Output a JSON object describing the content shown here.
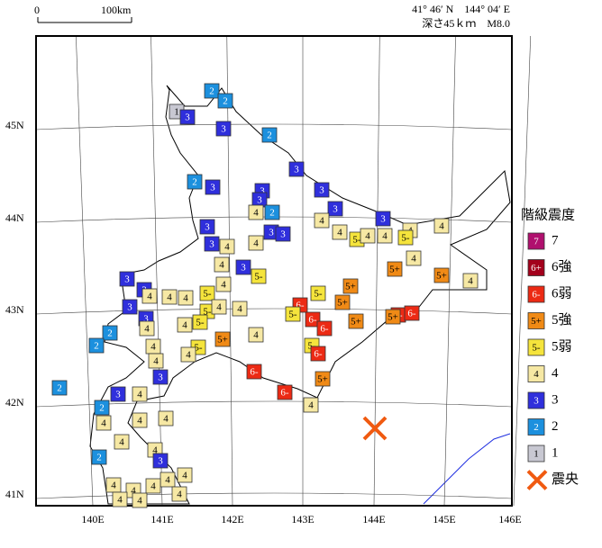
{
  "header": {
    "scale_start": "0",
    "scale_end": "100km",
    "location": "41° 46′ N　144° 04′ E",
    "depth_magnitude": "深さ45ｋｍ　M8.0"
  },
  "axes": {
    "longitudes": [
      "140E",
      "141E",
      "142E",
      "143E",
      "144E",
      "145E",
      "146E"
    ],
    "latitudes": [
      "45N",
      "44N",
      "43N",
      "42N",
      "41N"
    ]
  },
  "legend": {
    "title": "階級震度",
    "items": [
      {
        "symbol": "7",
        "label": "7",
        "color": "#b0106e"
      },
      {
        "symbol": "6+",
        "label": "6強",
        "color": "#a3001c"
      },
      {
        "symbol": "6-",
        "label": "6弱",
        "color": "#ec2a14"
      },
      {
        "symbol": "5+",
        "label": "5強",
        "color": "#f08a16"
      },
      {
        "symbol": "5-",
        "label": "5弱",
        "color": "#f5e43c"
      },
      {
        "symbol": "4",
        "label": "4",
        "color": "#f6e8a4"
      },
      {
        "symbol": "3",
        "label": "3",
        "color": "#2f2fdc"
      },
      {
        "symbol": "2",
        "label": "2",
        "color": "#1c90de"
      },
      {
        "symbol": "1",
        "label": "1",
        "color": "#c8c8d2"
      }
    ],
    "epicenter_label": "震央"
  },
  "stations": [
    "2",
    "2",
    "1",
    "3",
    "3",
    "2",
    "3",
    "2",
    "3",
    "3",
    "3",
    "3",
    "3",
    "4",
    "2",
    "3",
    "4",
    "3",
    "4",
    "4",
    "4",
    "4",
    "5-",
    "4",
    "5-",
    "3",
    "3",
    "4",
    "3",
    "4",
    "4",
    "3",
    "4",
    "5-",
    "4",
    "5+",
    "5+",
    "4",
    "3",
    "3",
    "4",
    "4",
    "4",
    "5-",
    "5-",
    "4",
    "4",
    "3",
    "2",
    "2",
    "3",
    "4",
    "4",
    "5-",
    "5+",
    "5-",
    "4",
    "4",
    "4",
    "4",
    "3",
    "6-",
    "5-",
    "5+",
    "5+",
    "5-",
    "6-",
    "6-",
    "5+",
    "5-",
    "6-",
    "5+",
    "6-",
    "6-",
    "4",
    "6-",
    "6-",
    "5+",
    "2",
    "3",
    "4",
    "2",
    "4",
    "4",
    "4",
    "4",
    "2",
    "4",
    "3",
    "4",
    "4",
    "4",
    "4",
    "4",
    "4",
    "4",
    "4"
  ]
}
